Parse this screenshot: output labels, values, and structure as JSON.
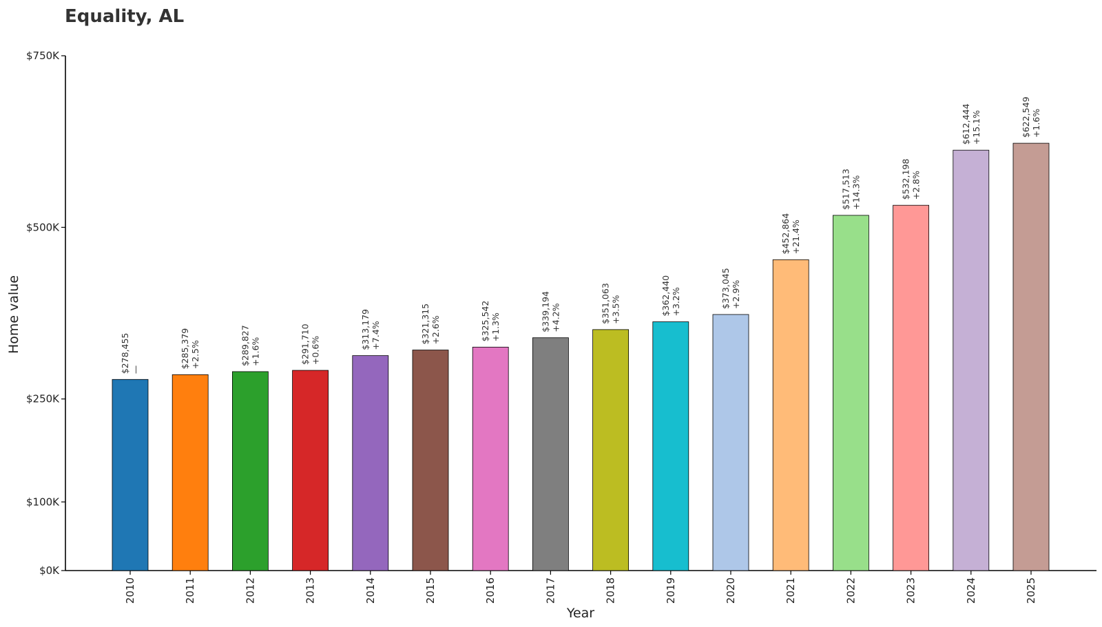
{
  "chart_data": {
    "type": "bar",
    "title": "Equality, AL",
    "xlabel": "Year",
    "ylabel": "Home value",
    "ylim": [
      0,
      750000
    ],
    "yticks": [
      {
        "value": 0,
        "label": "$0K"
      },
      {
        "value": 100000,
        "label": "$100K"
      },
      {
        "value": 250000,
        "label": "$250K"
      },
      {
        "value": 500000,
        "label": "$500K"
      },
      {
        "value": 750000,
        "label": "$750K"
      }
    ],
    "categories": [
      "2010",
      "2011",
      "2012",
      "2013",
      "2014",
      "2015",
      "2016",
      "2017",
      "2018",
      "2019",
      "2020",
      "2021",
      "2022",
      "2023",
      "2024",
      "2025"
    ],
    "values": [
      278455,
      285379,
      289827,
      291710,
      313179,
      321315,
      325542,
      339194,
      351063,
      362440,
      373045,
      452864,
      517513,
      532198,
      612444,
      622549
    ],
    "value_labels": [
      "$278,455",
      "$285,379",
      "$289,827",
      "$291,710",
      "$313,179",
      "$321,315",
      "$325,542",
      "$339,194",
      "$351,063",
      "$362,440",
      "$373,045",
      "$452,864",
      "$517,513",
      "$532,198",
      "$612,444",
      "$622,549"
    ],
    "change_labels": [
      "—",
      "+2.5%",
      "+1.6%",
      "+0.6%",
      "+7.4%",
      "+2.6%",
      "+1.3%",
      "+4.2%",
      "+3.5%",
      "+3.2%",
      "+2.9%",
      "+21.4%",
      "+14.3%",
      "+2.8%",
      "+15.1%",
      "+1.6%"
    ],
    "colors": [
      "#1f77b4",
      "#ff7f0e",
      "#2ca02c",
      "#d62728",
      "#9467bd",
      "#8c564b",
      "#e377c2",
      "#7f7f7f",
      "#bcbd22",
      "#17becf",
      "#aec7e8",
      "#ffbb78",
      "#98df8a",
      "#ff9896",
      "#c5b0d5",
      "#c49c94"
    ]
  }
}
